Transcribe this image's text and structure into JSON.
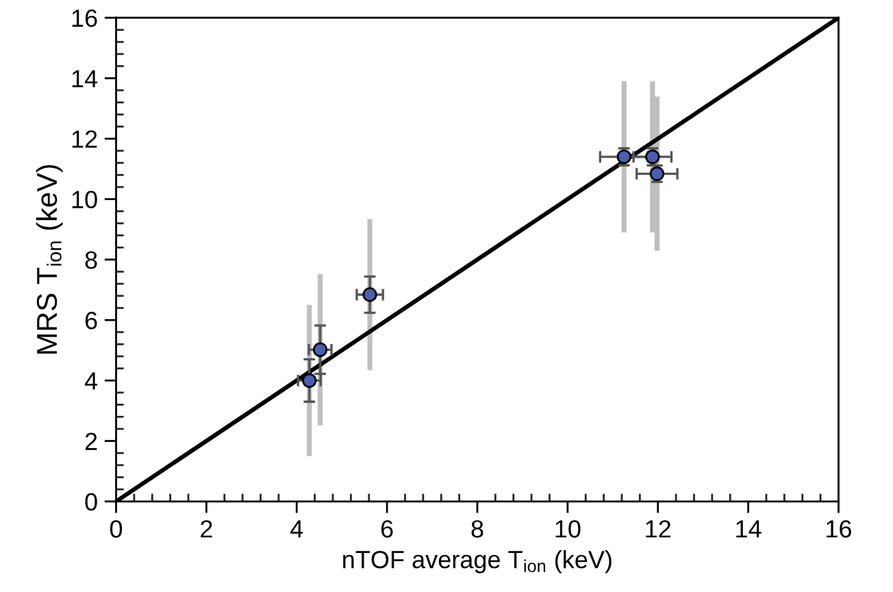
{
  "chart_data": {
    "type": "scatter",
    "xlabel": "nTOF average T$_{ion}$ (keV)",
    "ylabel": "MRS T$_{ion}$ (keV)",
    "xlim": [
      0,
      16
    ],
    "ylim": [
      0,
      16
    ],
    "xticks": [
      0,
      2,
      4,
      6,
      8,
      10,
      12,
      14,
      16
    ],
    "yticks": [
      0,
      2,
      4,
      6,
      8,
      10,
      12,
      14,
      16
    ],
    "grid": false,
    "series": [
      {
        "type": "line",
        "color": "#000000",
        "x": [
          0,
          16
        ],
        "values": [
          0,
          16
        ],
        "marker": "none",
        "line_style": "solid"
      },
      {
        "color": "#4a5fb0",
        "marker": "circle",
        "x": [
          4.28,
          4.52,
          5.62,
          11.25,
          11.88,
          11.98
        ],
        "values": [
          4.0,
          5.02,
          6.84,
          11.4,
          11.4,
          10.84
        ],
        "errors": [
          0.7,
          0.8,
          0.6,
          0.28,
          0.28,
          0.27
        ],
        "xerrors": [
          0.25,
          0.25,
          0.29,
          0.53,
          0.42,
          0.45
        ],
        "lower": [
          1.5,
          2.52,
          4.34,
          8.9,
          8.9,
          8.29
        ],
        "upper": [
          6.5,
          7.52,
          9.34,
          13.9,
          13.9,
          13.39
        ]
      }
    ]
  }
}
